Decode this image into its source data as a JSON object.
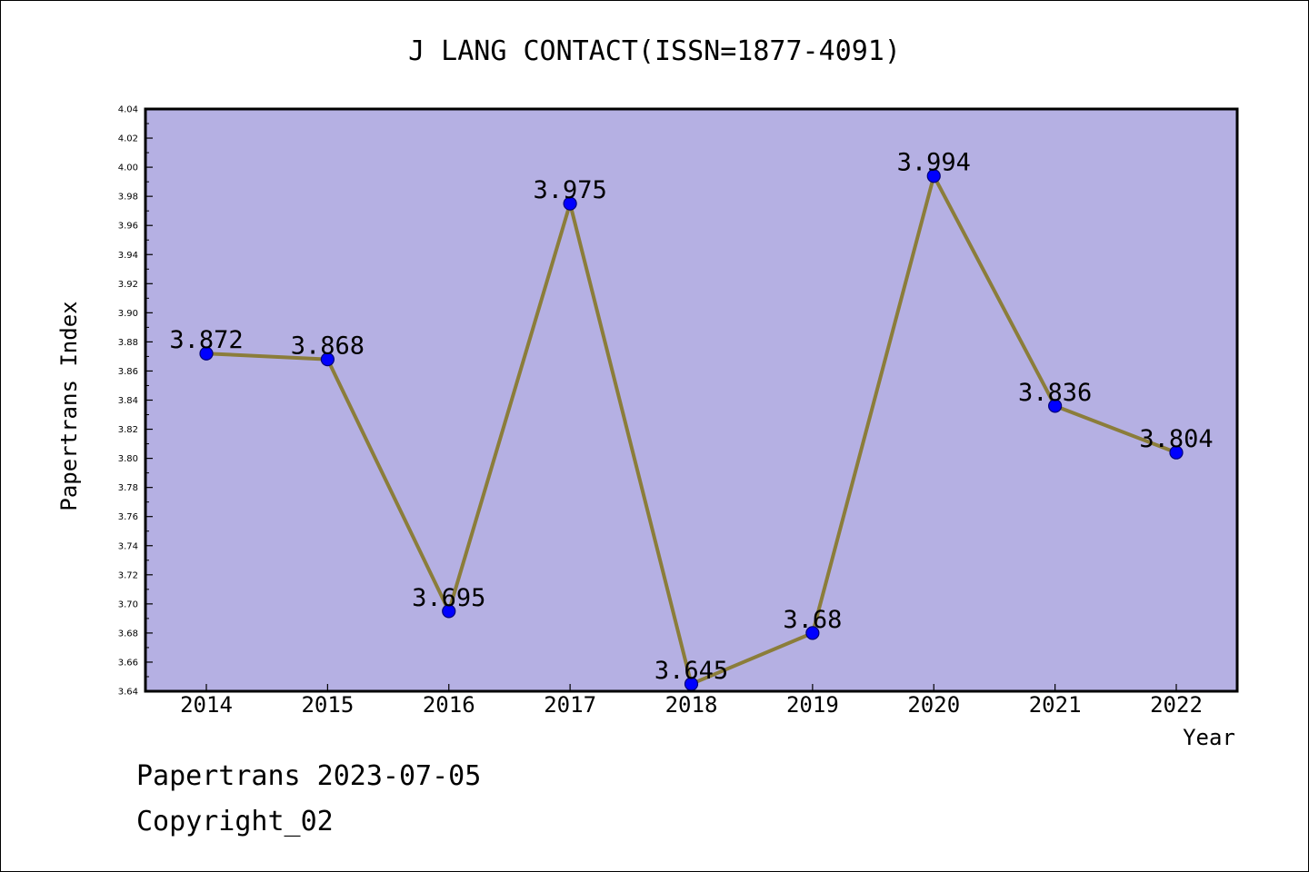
{
  "chart_data": {
    "type": "line",
    "title": "J LANG CONTACT(ISSN=1877-4091)",
    "xlabel": "Year",
    "ylabel": "Papertrans Index",
    "categories": [
      "2014",
      "2015",
      "2016",
      "2017",
      "2018",
      "2019",
      "2020",
      "2021",
      "2022"
    ],
    "series": [
      {
        "values": [
          3.872,
          3.868,
          3.695,
          3.975,
          3.645,
          3.68,
          3.994,
          3.836,
          3.804
        ],
        "labels": [
          "3.872",
          "3.868",
          "3.695",
          "3.975",
          "3.645",
          "3.68",
          "3.994",
          "3.836",
          "3.804"
        ]
      }
    ],
    "ylim": [
      3.64,
      4.04
    ],
    "ytick_step": 0.02,
    "yticks": [
      "3.64",
      "3.66",
      "3.68",
      "3.70",
      "3.72",
      "3.74",
      "3.76",
      "3.78",
      "3.80",
      "3.82",
      "3.84",
      "3.86",
      "3.88",
      "3.90",
      "3.92",
      "3.94",
      "3.96",
      "3.98",
      "4.00",
      "4.02",
      "4.04"
    ],
    "grid": false,
    "colors": {
      "plot_background": "#b5b0e3",
      "line": "#8b7d3a",
      "marker": "#0000ff",
      "axis": "#000000"
    }
  },
  "footer": {
    "line1": "Papertrans 2023-07-05",
    "line2": "Copyright_02"
  }
}
